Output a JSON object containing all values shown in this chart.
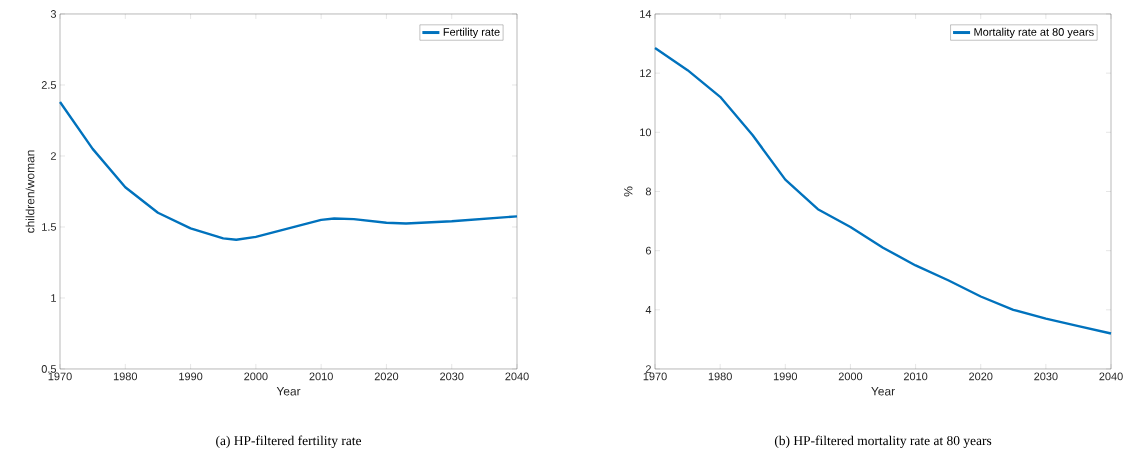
{
  "chart_data": [
    {
      "type": "line",
      "xlabel": "Year",
      "ylabel": "children/woman",
      "annotations": [
        "(a) HP-filtered fertility rate"
      ],
      "legend": "top right",
      "grid": false,
      "xlim": [
        1970,
        2040
      ],
      "ylim": [
        0.5,
        3
      ],
      "xticks": [
        1970,
        1980,
        1990,
        2000,
        2010,
        2020,
        2030,
        2040
      ],
      "yticks": [
        0.5,
        1,
        1.5,
        2,
        2.5,
        3
      ],
      "series": [
        {
          "name": "Fertility rate",
          "color": "#0072bd",
          "x": [
            1970,
            1975,
            1980,
            1985,
            1990,
            1995,
            1997,
            2000,
            2005,
            2010,
            2012,
            2015,
            2020,
            2023,
            2030,
            2040
          ],
          "values": [
            2.38,
            2.05,
            1.78,
            1.6,
            1.49,
            1.42,
            1.41,
            1.43,
            1.49,
            1.55,
            1.56,
            1.555,
            1.53,
            1.525,
            1.54,
            1.575
          ]
        }
      ]
    },
    {
      "type": "line",
      "xlabel": "Year",
      "ylabel": "%",
      "annotations": [
        "(b) HP-filtered mortality rate at 80 years"
      ],
      "legend": "top right",
      "grid": false,
      "xlim": [
        1970,
        2040
      ],
      "ylim": [
        2,
        14
      ],
      "xticks": [
        1970,
        1980,
        1990,
        2000,
        2010,
        2020,
        2030,
        2040
      ],
      "yticks": [
        2,
        4,
        6,
        8,
        10,
        12,
        14
      ],
      "series": [
        {
          "name": "Mortality rate at 80 years",
          "color": "#0072bd",
          "x": [
            1970,
            1975,
            1980,
            1985,
            1990,
            1995,
            2000,
            2005,
            2010,
            2015,
            2020,
            2025,
            2030,
            2035,
            2040
          ],
          "values": [
            12.85,
            12.1,
            11.2,
            9.9,
            8.4,
            7.4,
            6.8,
            6.1,
            5.5,
            5.0,
            4.45,
            4.0,
            3.7,
            3.45,
            3.2
          ]
        }
      ]
    }
  ]
}
